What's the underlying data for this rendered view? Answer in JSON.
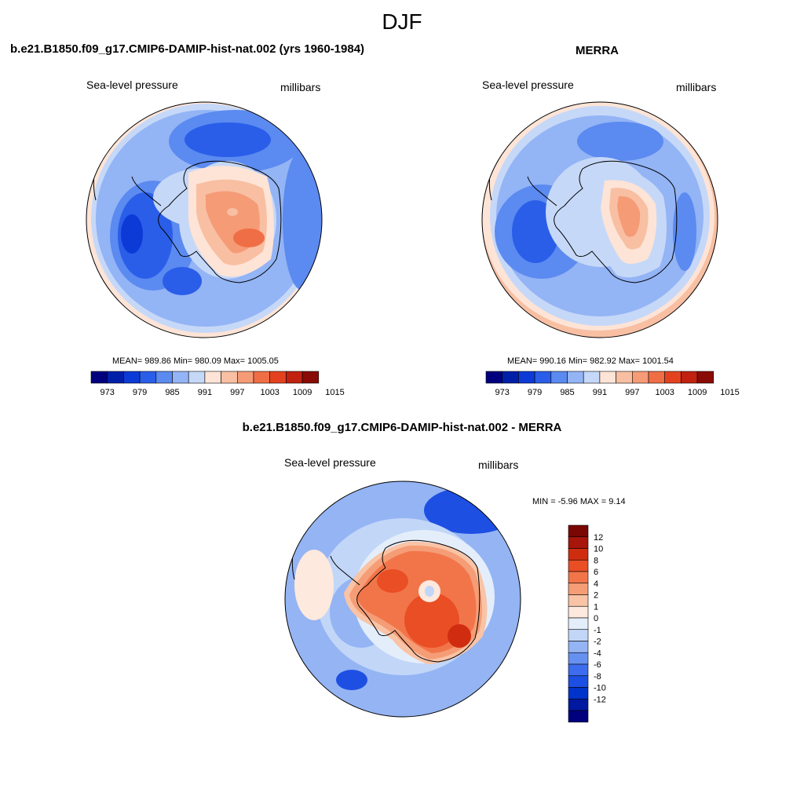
{
  "title": "DJF",
  "colors": {
    "abs_scale": [
      "#00007f",
      "#001fa8",
      "#0c3ad6",
      "#2a5ee9",
      "#5b8af0",
      "#93b4f5",
      "#c6d8f8",
      "#fde4d6",
      "#f8bfa3",
      "#f59b76",
      "#f06e45",
      "#e4421f",
      "#c0220f",
      "#8a0b05"
    ],
    "diff_scale": [
      "#00007f",
      "#0019a0",
      "#0033cc",
      "#1e4fe3",
      "#3d6cee",
      "#6691f1",
      "#94b4f4",
      "#c2d6f8",
      "#e4eefb",
      "#fde9dd",
      "#f9c3a6",
      "#f59d76",
      "#f2754a",
      "#ea4e25",
      "#d02d10",
      "#a8150a",
      "#7a0704"
    ],
    "ocean_mid": "#93b4f5",
    "ocean_outer": "#c6d8f8",
    "ring_far": "#fde4d6"
  },
  "panels": {
    "model": {
      "title": "b.e21.B1850.f09_g17.CMIP6-DAMIP-hist-nat.002 (yrs 1960-1984)",
      "left_label": "Sea-level pressure",
      "right_label": "millibars",
      "stats": "MEAN= 989.86  Min= 980.09  Max= 1005.05"
    },
    "obs": {
      "title": "MERRA",
      "left_label": "Sea-level pressure",
      "right_label": "millibars",
      "stats": "MEAN= 990.16  Min= 982.92  Max= 1001.54"
    },
    "diff": {
      "title": "b.e21.B1850.f09_g17.CMIP6-DAMIP-hist-nat.002 - MERRA",
      "left_label": "Sea-level pressure",
      "right_label": "millibars",
      "stats": "MIN =  -5.96 MAX =   9.14"
    }
  },
  "colorbars": {
    "abs_labels": [
      "973",
      "979",
      "985",
      "991",
      "997",
      "1003",
      "1009",
      "1015"
    ],
    "diff_labels": [
      "12",
      "10",
      "8",
      "6",
      "4",
      "2",
      "1",
      "0",
      "-1",
      "-2",
      "-4",
      "-6",
      "-8",
      "-10",
      "-12"
    ]
  }
}
